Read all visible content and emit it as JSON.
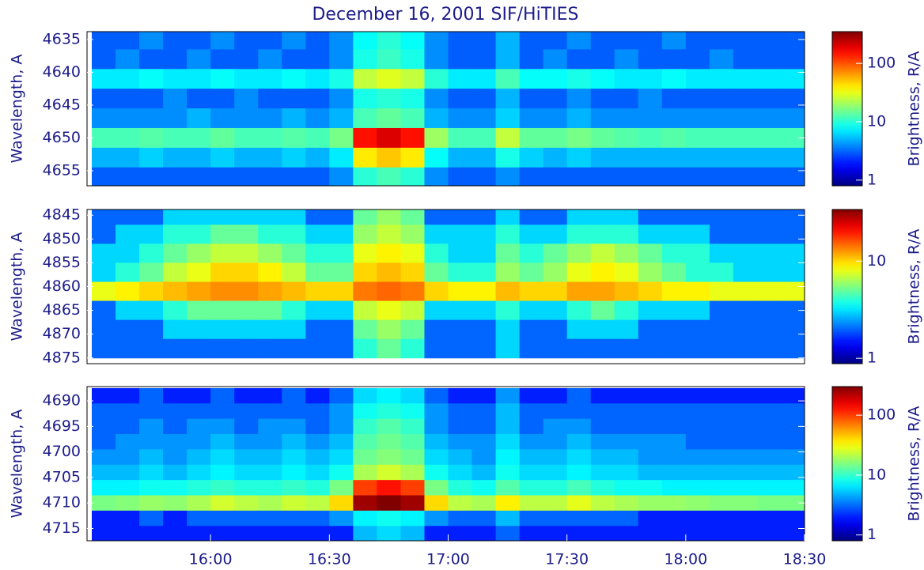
{
  "chart_data": [
    {
      "type": "heatmap",
      "title": "December 16, 2001 SIF/HiTIES",
      "ylabel": "Wavelength, A",
      "zlabel": "Brightness, R/A",
      "colormap": "jet",
      "zlog": true,
      "xlim": [
        15.48,
        18.5
      ],
      "ylim": [
        4633.8,
        4657.3
      ],
      "yticks": [
        4635,
        4640,
        4645,
        4650,
        4655
      ],
      "zlim": [
        0.8,
        350
      ],
      "zticks": [
        1,
        10,
        100
      ],
      "x": [
        15.55,
        15.65,
        15.75,
        15.85,
        15.95,
        16.05,
        16.15,
        16.25,
        16.35,
        16.45,
        16.55,
        16.65,
        16.75,
        16.85,
        16.95,
        17.05,
        17.15,
        17.25,
        17.35,
        17.45,
        17.55,
        17.65,
        17.75,
        17.85,
        17.95,
        18.05,
        18.15,
        18.25,
        18.35,
        18.45
      ],
      "y": [
        4635,
        4638,
        4641,
        4644,
        4647,
        4650,
        4653,
        4656
      ],
      "z": [
        [
          3,
          3,
          4,
          3,
          3,
          4,
          3,
          3,
          4,
          3,
          4,
          8,
          10,
          8,
          4,
          3,
          3,
          5,
          3,
          3,
          4,
          3,
          3,
          3,
          4,
          3,
          3,
          3,
          3,
          3
        ],
        [
          3,
          4,
          3,
          3,
          4,
          3,
          3,
          4,
          3,
          3,
          4,
          9,
          11,
          9,
          4,
          3,
          3,
          5,
          3,
          4,
          3,
          3,
          4,
          3,
          3,
          3,
          4,
          3,
          3,
          3
        ],
        [
          7,
          7,
          8,
          7,
          7,
          8,
          7,
          7,
          8,
          7,
          9,
          25,
          30,
          25,
          10,
          7,
          7,
          12,
          8,
          8,
          9,
          8,
          7,
          7,
          8,
          7,
          7,
          7,
          7,
          7
        ],
        [
          3,
          3,
          3,
          4,
          3,
          3,
          4,
          3,
          3,
          3,
          4,
          9,
          10,
          9,
          4,
          3,
          3,
          5,
          3,
          3,
          4,
          3,
          3,
          4,
          3,
          3,
          3,
          3,
          3,
          3
        ],
        [
          4,
          4,
          4,
          4,
          5,
          4,
          4,
          4,
          5,
          4,
          5,
          12,
          14,
          12,
          5,
          4,
          4,
          6,
          4,
          4,
          5,
          4,
          4,
          4,
          4,
          4,
          4,
          4,
          4,
          4
        ],
        [
          12,
          12,
          13,
          12,
          12,
          14,
          12,
          12,
          13,
          12,
          16,
          150,
          200,
          150,
          20,
          12,
          12,
          25,
          14,
          14,
          16,
          14,
          13,
          12,
          13,
          12,
          12,
          12,
          12,
          12
        ],
        [
          5,
          5,
          6,
          5,
          5,
          6,
          5,
          5,
          6,
          5,
          7,
          40,
          50,
          40,
          8,
          5,
          5,
          9,
          6,
          5,
          6,
          5,
          5,
          5,
          5,
          5,
          5,
          5,
          5,
          5
        ],
        [
          3,
          3,
          3,
          3,
          3,
          3,
          3,
          3,
          3,
          3,
          4,
          10,
          12,
          10,
          4,
          3,
          3,
          4,
          3,
          3,
          3,
          3,
          3,
          3,
          3,
          3,
          3,
          3,
          3,
          3
        ]
      ]
    },
    {
      "type": "heatmap",
      "ylabel": "Wavelength, A",
      "zlabel": "Brightness, R/A",
      "colormap": "jet",
      "zlog": true,
      "xlim": [
        15.48,
        18.5
      ],
      "ylim": [
        4843.8,
        4876.2
      ],
      "yticks": [
        4845,
        4850,
        4855,
        4860,
        4865,
        4870,
        4875
      ],
      "zlim": [
        0.88,
        34
      ],
      "zticks": [
        1,
        10
      ],
      "x": [
        15.55,
        15.65,
        15.75,
        15.85,
        15.95,
        16.05,
        16.15,
        16.25,
        16.35,
        16.45,
        16.55,
        16.65,
        16.75,
        16.85,
        16.95,
        17.05,
        17.15,
        17.25,
        17.35,
        17.45,
        17.55,
        17.65,
        17.75,
        17.85,
        17.95,
        18.05,
        18.15,
        18.25,
        18.35,
        18.45
      ],
      "y": [
        4845,
        4849,
        4853,
        4857,
        4861,
        4865,
        4869,
        4873
      ],
      "z": [
        [
          2,
          2,
          2,
          3,
          3,
          3,
          3,
          3,
          3,
          2,
          2,
          5,
          6,
          5,
          2,
          2,
          2,
          3,
          2,
          2,
          3,
          3,
          3,
          2,
          2,
          2,
          2,
          2,
          2,
          2
        ],
        [
          2,
          3,
          3,
          4,
          4,
          5,
          5,
          4,
          4,
          3,
          3,
          6,
          7,
          6,
          3,
          3,
          3,
          4,
          3,
          3,
          4,
          4,
          4,
          3,
          3,
          3,
          2,
          2,
          2,
          2
        ],
        [
          3,
          3,
          4,
          5,
          6,
          7,
          7,
          6,
          5,
          4,
          4,
          8,
          9,
          8,
          4,
          3,
          3,
          5,
          4,
          5,
          6,
          7,
          6,
          5,
          4,
          4,
          3,
          3,
          3,
          3
        ],
        [
          3,
          4,
          5,
          7,
          8,
          10,
          10,
          9,
          7,
          5,
          5,
          10,
          11,
          10,
          5,
          4,
          4,
          6,
          5,
          6,
          8,
          9,
          8,
          6,
          5,
          4,
          4,
          3,
          3,
          3
        ],
        [
          8,
          9,
          10,
          11,
          12,
          13,
          13,
          12,
          11,
          10,
          10,
          14,
          15,
          14,
          10,
          9,
          9,
          11,
          10,
          10,
          12,
          12,
          11,
          10,
          9,
          9,
          8,
          8,
          8,
          8
        ],
        [
          2,
          3,
          3,
          4,
          5,
          5,
          5,
          5,
          4,
          3,
          3,
          7,
          8,
          7,
          3,
          3,
          3,
          4,
          3,
          3,
          4,
          5,
          4,
          3,
          3,
          3,
          2,
          2,
          2,
          2
        ],
        [
          2,
          2,
          2,
          3,
          3,
          3,
          3,
          3,
          3,
          2,
          2,
          5,
          6,
          5,
          2,
          2,
          2,
          3,
          2,
          2,
          3,
          3,
          3,
          2,
          2,
          2,
          2,
          2,
          2,
          2
        ],
        [
          2,
          2,
          2,
          2,
          2,
          2,
          2,
          2,
          2,
          2,
          2,
          4,
          5,
          4,
          2,
          2,
          2,
          3,
          2,
          2,
          2,
          2,
          2,
          2,
          2,
          2,
          2,
          2,
          2,
          2
        ]
      ]
    },
    {
      "type": "heatmap",
      "ylabel": "Wavelength, A",
      "zlabel": "Brightness, R/A",
      "colormap": "jet",
      "zlog": true,
      "xlim": [
        15.48,
        18.5
      ],
      "xticks": [
        {
          "value": 16,
          "label": "16:00"
        },
        {
          "value": 16.5,
          "label": "16:30"
        },
        {
          "value": 17,
          "label": "17:00"
        },
        {
          "value": 17.5,
          "label": "17:30"
        },
        {
          "value": 18,
          "label": "18:00"
        },
        {
          "value": 18.5,
          "label": "18:30"
        }
      ],
      "ylim": [
        4687.2,
        4717.4
      ],
      "yticks": [
        4690,
        4695,
        4700,
        4705,
        4710,
        4715
      ],
      "zlim": [
        0.8,
        300
      ],
      "zticks": [
        1,
        10,
        100
      ],
      "x": [
        15.55,
        15.65,
        15.75,
        15.85,
        15.95,
        16.05,
        16.15,
        16.25,
        16.35,
        16.45,
        16.55,
        16.65,
        16.75,
        16.85,
        16.95,
        17.05,
        17.15,
        17.25,
        17.35,
        17.45,
        17.55,
        17.65,
        17.75,
        17.85,
        17.95,
        18.05,
        18.15,
        18.25,
        18.35,
        18.45
      ],
      "y": [
        4689,
        4692,
        4695,
        4698,
        4701,
        4704,
        4707,
        4710,
        4713,
        4716
      ],
      "z": [
        [
          2,
          2,
          3,
          2,
          2,
          3,
          2,
          2,
          3,
          2,
          3,
          6,
          7,
          6,
          3,
          2,
          2,
          4,
          2,
          2,
          3,
          2,
          2,
          2,
          2,
          2,
          2,
          2,
          2,
          2
        ],
        [
          3,
          3,
          3,
          3,
          3,
          3,
          3,
          3,
          3,
          3,
          4,
          8,
          9,
          8,
          4,
          3,
          3,
          5,
          3,
          3,
          3,
          3,
          3,
          3,
          3,
          3,
          3,
          3,
          3,
          3
        ],
        [
          3,
          3,
          4,
          3,
          4,
          4,
          3,
          4,
          4,
          3,
          4,
          10,
          12,
          10,
          4,
          3,
          3,
          5,
          3,
          4,
          4,
          3,
          3,
          3,
          3,
          3,
          3,
          3,
          3,
          3
        ],
        [
          3,
          4,
          4,
          4,
          4,
          5,
          4,
          4,
          5,
          4,
          5,
          12,
          14,
          12,
          5,
          4,
          4,
          6,
          4,
          4,
          5,
          4,
          4,
          4,
          4,
          3,
          3,
          3,
          3,
          3
        ],
        [
          4,
          4,
          5,
          4,
          5,
          6,
          5,
          5,
          6,
          5,
          6,
          14,
          16,
          14,
          6,
          5,
          4,
          7,
          5,
          5,
          6,
          5,
          5,
          4,
          4,
          4,
          4,
          4,
          4,
          4
        ],
        [
          5,
          5,
          6,
          5,
          6,
          7,
          6,
          6,
          7,
          6,
          8,
          20,
          25,
          20,
          8,
          6,
          5,
          8,
          6,
          6,
          7,
          6,
          6,
          5,
          5,
          5,
          5,
          5,
          5,
          5
        ],
        [
          7,
          7,
          8,
          8,
          9,
          10,
          9,
          9,
          10,
          9,
          15,
          100,
          130,
          100,
          15,
          9,
          8,
          12,
          9,
          9,
          11,
          9,
          8,
          8,
          7,
          7,
          7,
          7,
          7,
          7
        ],
        [
          15,
          16,
          18,
          17,
          20,
          25,
          22,
          20,
          24,
          22,
          40,
          250,
          300,
          250,
          40,
          22,
          20,
          35,
          22,
          22,
          28,
          22,
          20,
          18,
          18,
          17,
          16,
          16,
          15,
          15
        ],
        [
          2,
          2,
          3,
          2,
          3,
          3,
          3,
          3,
          3,
          3,
          4,
          7,
          8,
          7,
          4,
          3,
          3,
          5,
          3,
          3,
          3,
          3,
          3,
          2,
          2,
          2,
          2,
          2,
          2,
          2
        ],
        [
          2,
          2,
          2,
          2,
          2,
          2,
          2,
          2,
          2,
          2,
          2,
          5,
          6,
          5,
          2,
          2,
          2,
          3,
          2,
          2,
          2,
          2,
          2,
          2,
          2,
          2,
          2,
          2,
          2,
          2
        ]
      ]
    }
  ]
}
